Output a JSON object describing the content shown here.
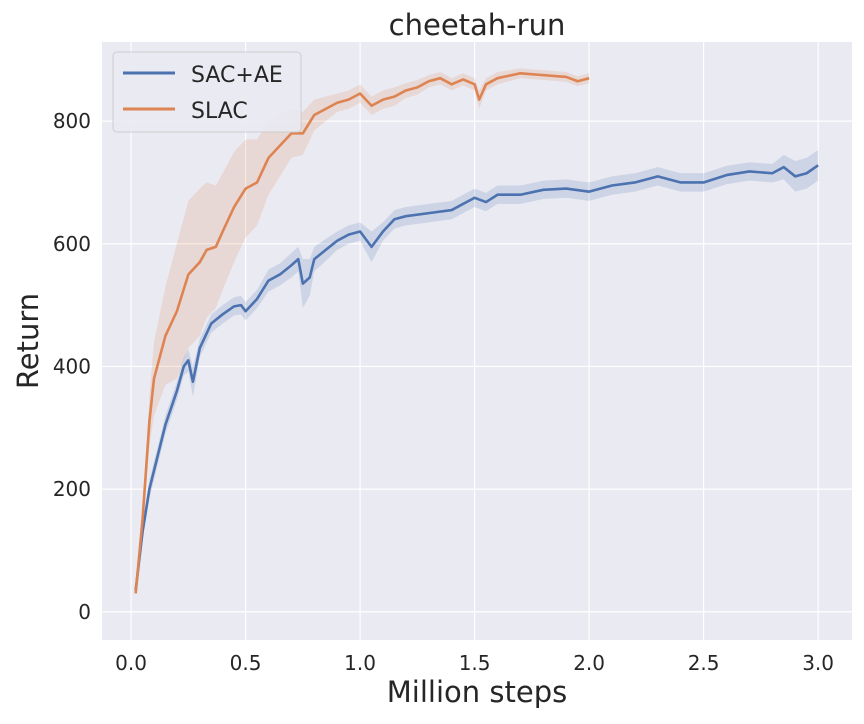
{
  "chart_data": {
    "type": "line",
    "title": "cheetah-run",
    "xlabel": "Million steps",
    "ylabel": "Return",
    "xlim": [
      -0.127,
      3.148
    ],
    "ylim": [
      -46,
      929
    ],
    "xticks": [
      0.0,
      0.5,
      1.0,
      1.5,
      2.0,
      2.5,
      3.0
    ],
    "xtick_labels": [
      "0.0",
      "0.5",
      "1.0",
      "1.5",
      "2.0",
      "2.5",
      "3.0"
    ],
    "yticks": [
      0,
      200,
      400,
      600,
      800
    ],
    "ytick_labels": [
      "0",
      "200",
      "400",
      "600",
      "800"
    ],
    "grid": true,
    "legend_position": "top-left",
    "series": [
      {
        "name": "SAC+AE",
        "color": "#4c72b0",
        "x": [
          0.02,
          0.05,
          0.08,
          0.12,
          0.15,
          0.2,
          0.23,
          0.25,
          0.27,
          0.3,
          0.35,
          0.4,
          0.45,
          0.48,
          0.5,
          0.55,
          0.6,
          0.65,
          0.7,
          0.73,
          0.75,
          0.78,
          0.8,
          0.85,
          0.9,
          0.95,
          1.0,
          1.05,
          1.1,
          1.15,
          1.2,
          1.3,
          1.4,
          1.5,
          1.55,
          1.6,
          1.7,
          1.8,
          1.9,
          2.0,
          2.1,
          2.2,
          2.3,
          2.4,
          2.5,
          2.6,
          2.7,
          2.8,
          2.85,
          2.9,
          2.95,
          3.0
        ],
        "y": [
          35,
          130,
          200,
          260,
          305,
          360,
          400,
          410,
          375,
          430,
          470,
          485,
          498,
          500,
          490,
          510,
          540,
          550,
          565,
          575,
          535,
          545,
          575,
          590,
          605,
          615,
          620,
          595,
          620,
          640,
          645,
          650,
          655,
          675,
          668,
          680,
          680,
          688,
          690,
          685,
          695,
          700,
          710,
          700,
          700,
          712,
          718,
          715,
          725,
          710,
          715,
          728
        ],
        "band": [
          5,
          12,
          15,
          15,
          15,
          15,
          15,
          18,
          25,
          15,
          15,
          15,
          15,
          15,
          15,
          15,
          18,
          18,
          20,
          20,
          40,
          30,
          20,
          18,
          15,
          15,
          15,
          25,
          15,
          15,
          15,
          15,
          15,
          15,
          15,
          15,
          15,
          15,
          15,
          15,
          15,
          15,
          15,
          15,
          15,
          15,
          15,
          15,
          20,
          25,
          25,
          25
        ]
      },
      {
        "name": "SLAC",
        "color": "#dd8452",
        "x": [
          0.02,
          0.05,
          0.08,
          0.1,
          0.15,
          0.2,
          0.25,
          0.3,
          0.33,
          0.37,
          0.4,
          0.45,
          0.5,
          0.55,
          0.6,
          0.65,
          0.7,
          0.75,
          0.8,
          0.85,
          0.9,
          0.95,
          1.0,
          1.05,
          1.1,
          1.15,
          1.2,
          1.25,
          1.3,
          1.35,
          1.4,
          1.45,
          1.5,
          1.52,
          1.55,
          1.6,
          1.7,
          1.8,
          1.9,
          1.95,
          2.0
        ],
        "y": [
          30,
          150,
          310,
          380,
          450,
          490,
          550,
          570,
          590,
          595,
          620,
          660,
          690,
          700,
          740,
          760,
          780,
          780,
          810,
          820,
          830,
          835,
          845,
          825,
          835,
          840,
          850,
          855,
          865,
          870,
          860,
          868,
          860,
          835,
          860,
          870,
          878,
          875,
          872,
          865,
          870
        ],
        "band": [
          5,
          20,
          40,
          60,
          80,
          110,
          120,
          120,
          110,
          100,
          95,
          90,
          80,
          70,
          60,
          50,
          40,
          35,
          25,
          20,
          15,
          15,
          15,
          15,
          15,
          15,
          12,
          12,
          10,
          10,
          10,
          10,
          10,
          15,
          10,
          10,
          8,
          8,
          8,
          8,
          8
        ]
      }
    ]
  }
}
